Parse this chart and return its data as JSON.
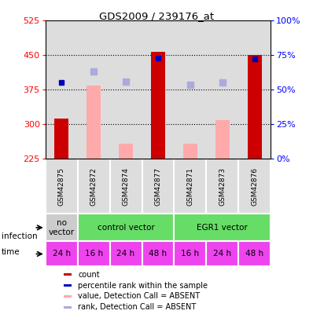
{
  "title": "GDS2009 / 239176_at",
  "samples": [
    "GSM42875",
    "GSM42872",
    "GSM42874",
    "GSM42877",
    "GSM42871",
    "GSM42873",
    "GSM42876"
  ],
  "count_values": [
    312,
    null,
    null,
    457,
    null,
    null,
    450
  ],
  "count_absent_values": [
    null,
    383,
    258,
    null,
    258,
    308,
    null
  ],
  "rank_values": [
    390,
    null,
    null,
    443,
    null,
    null,
    442
  ],
  "rank_absent_values": [
    null,
    415,
    393,
    null,
    385,
    390,
    null
  ],
  "ylim": [
    225,
    525
  ],
  "yticks_left": [
    225,
    300,
    375,
    450,
    525
  ],
  "yticks_right": [
    0,
    25,
    50,
    75,
    100
  ],
  "yticks_right_labels": [
    "0%",
    "25%",
    "50%",
    "75%",
    "100%"
  ],
  "bar_color_dark_red": "#cc0000",
  "bar_color_pink": "#ffaaaa",
  "dot_color_dark_blue": "#0000bb",
  "dot_color_light_blue": "#aaaadd",
  "infection_spans": [
    {
      "label": "no\nvector",
      "start": 0,
      "end": 1,
      "color": "#cccccc"
    },
    {
      "label": "control vector",
      "start": 1,
      "end": 4,
      "color": "#66dd66"
    },
    {
      "label": "EGR1 vector",
      "start": 4,
      "end": 7,
      "color": "#66dd66"
    }
  ],
  "time_labels": [
    "24 h",
    "16 h",
    "24 h",
    "48 h",
    "16 h",
    "24 h",
    "48 h"
  ],
  "time_color": "#ee44ee",
  "plot_bg": "#dddddd",
  "legend_items": [
    {
      "label": "count",
      "color": "#cc0000"
    },
    {
      "label": "percentile rank within the sample",
      "color": "#0000bb"
    },
    {
      "label": "value, Detection Call = ABSENT",
      "color": "#ffaaaa"
    },
    {
      "label": "rank, Detection Call = ABSENT",
      "color": "#aaaadd"
    }
  ]
}
